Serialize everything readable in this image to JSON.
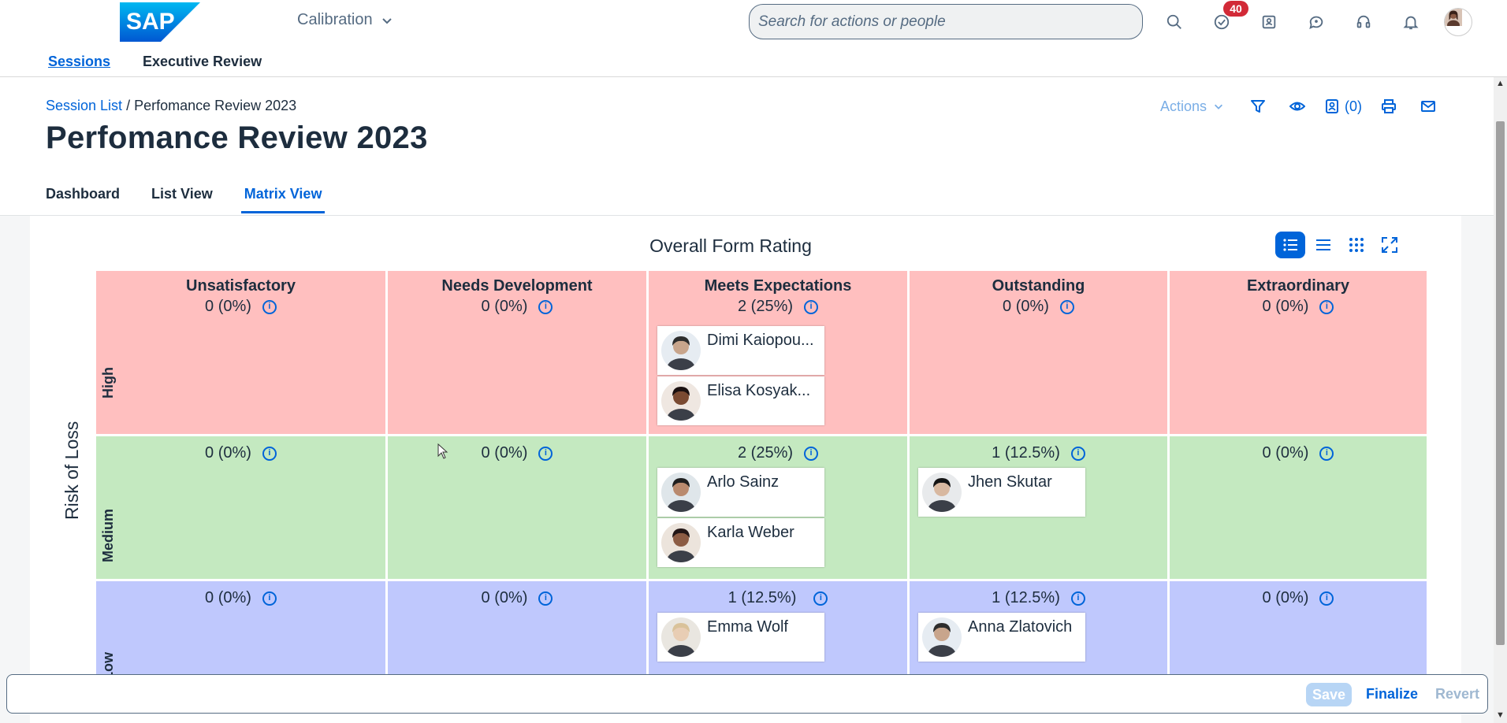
{
  "shellbar": {
    "logo_text": "SAP",
    "app_title": "Calibration",
    "search_placeholder": "Search for actions or people",
    "notification_count": "40"
  },
  "topnav": {
    "items": [
      "Sessions",
      "Executive Review"
    ]
  },
  "header": {
    "breadcrumb_link": "Session List",
    "breadcrumb_sep": " / ",
    "breadcrumb_current": "Perfomance Review 2023",
    "title": "Perfomance Review 2023",
    "actions_label": "Actions",
    "assign_count": "(0)",
    "tabs": [
      "Dashboard",
      "List View",
      "Matrix View"
    ]
  },
  "matrix": {
    "title": "Overall Form Rating",
    "y_axis_label": "Risk of Loss",
    "columns": [
      "Unsatisfactory",
      "Needs Development",
      "Meets Expectations",
      "Outstanding",
      "Extraordinary"
    ],
    "rows": [
      {
        "label": "High",
        "color": "#ffbfbf",
        "cells": [
          {
            "count": "0 (0%)",
            "employees": []
          },
          {
            "count": "0 (0%)",
            "employees": []
          },
          {
            "count": "2 (25%)",
            "employees": [
              "Dimi Kaiopou...",
              "Elisa Kosyak..."
            ]
          },
          {
            "count": "0 (0%)",
            "employees": []
          },
          {
            "count": "0 (0%)",
            "employees": []
          }
        ]
      },
      {
        "label": "Medium",
        "color": "#c4e9c0",
        "cells": [
          {
            "count": "0 (0%)",
            "employees": []
          },
          {
            "count": "0 (0%)",
            "employees": []
          },
          {
            "count": "2 (25%)",
            "employees": [
              "Arlo Sainz",
              "Karla Weber"
            ]
          },
          {
            "count": "1 (12.5%)",
            "employees": [
              "Jhen Skutar"
            ]
          },
          {
            "count": "0 (0%)",
            "employees": []
          }
        ]
      },
      {
        "label": "Low",
        "color": "#bfc8fd",
        "cells": [
          {
            "count": "0 (0%)",
            "employees": []
          },
          {
            "count": "0 (0%)",
            "employees": []
          },
          {
            "count": "1 (12.5%)",
            "employees": [
              "Emma Wolf"
            ]
          },
          {
            "count": "1 (12.5%)",
            "employees": [
              "Anna Zlatovich"
            ]
          },
          {
            "count": "0 (0%)",
            "employees": []
          }
        ]
      }
    ]
  },
  "footer": {
    "save_label": "Save",
    "finalize_label": "Finalize",
    "revert_label": "Revert"
  },
  "colors": {
    "accent": "#0064d9",
    "badge": "#d22a37"
  }
}
